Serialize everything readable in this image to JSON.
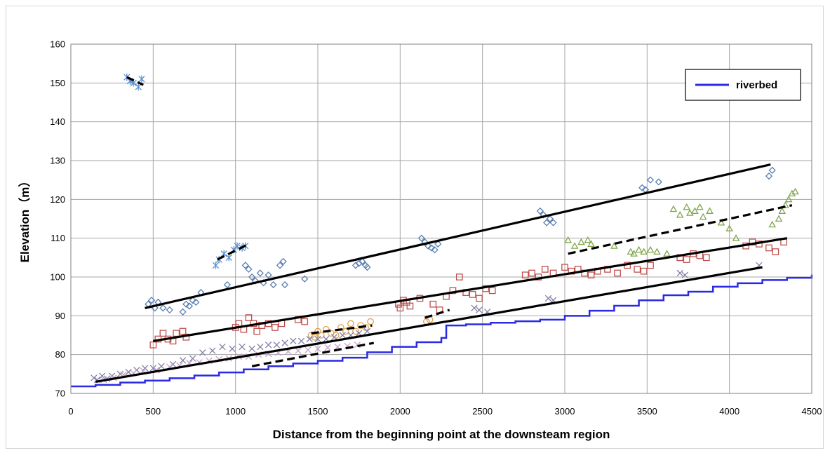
{
  "chart_data": {
    "type": "scatter",
    "title": "",
    "xlabel": "Distance from the beginning point at the downsteam region",
    "ylabel": "Elevation（m）",
    "xlim": [
      0,
      4500
    ],
    "ylim": [
      70,
      160
    ],
    "x_ticks": [
      0,
      500,
      1000,
      1500,
      2000,
      2500,
      3000,
      3500,
      4000,
      4500
    ],
    "y_ticks": [
      70,
      80,
      90,
      100,
      110,
      120,
      130,
      140,
      150,
      160
    ],
    "grid": true,
    "legend": {
      "position": "top-right",
      "entries": [
        {
          "label": "riverbed",
          "color": "#2a2ae6"
        }
      ]
    },
    "riverbed": {
      "name": "riverbed",
      "color": "#2a2ae6",
      "x": [
        0,
        150,
        300,
        450,
        600,
        750,
        900,
        1050,
        1200,
        1350,
        1500,
        1650,
        1800,
        1950,
        2100,
        2250,
        2280,
        2400,
        2550,
        2700,
        2850,
        3000,
        3150,
        3300,
        3450,
        3600,
        3750,
        3900,
        4050,
        4200,
        4350,
        4500
      ],
      "y": [
        71.8,
        72.2,
        72.8,
        73.3,
        73.9,
        74.6,
        75.4,
        76.2,
        77.0,
        77.7,
        78.4,
        79.2,
        80.6,
        82.0,
        83.2,
        84.3,
        87.5,
        87.8,
        88.2,
        88.6,
        89.0,
        90.0,
        91.3,
        92.6,
        94.0,
        95.3,
        96.2,
        97.5,
        98.4,
        99.2,
        99.8,
        100.6
      ]
    },
    "point_series": [
      {
        "marker": "diamond",
        "color": "#5b7fb0",
        "x": [
          470,
          490,
          510,
          530,
          560,
          600,
          680,
          700,
          720,
          740,
          760,
          790,
          950,
          1060,
          1080,
          1100,
          1120,
          1150,
          1170,
          1200,
          1230,
          1270,
          1290,
          1300,
          1420,
          1730,
          1750,
          1770,
          1790,
          1800,
          2130,
          2150,
          2170,
          2190,
          2210,
          2230,
          2850,
          2870,
          2890,
          2910,
          2930,
          3470,
          3490,
          3520,
          3570,
          4240,
          4260
        ],
        "y": [
          93,
          94,
          92,
          93.5,
          92,
          91.5,
          91,
          93,
          92.5,
          94,
          93.5,
          96,
          98,
          103,
          102,
          100,
          99,
          101,
          98.5,
          100.5,
          98,
          103,
          104,
          98,
          99.5,
          103,
          103.5,
          104,
          103,
          102.5,
          110,
          109,
          108,
          107.5,
          107,
          108.5,
          117,
          116,
          114,
          115,
          114,
          123,
          122.5,
          125,
          124.5,
          126,
          127.5
        ]
      },
      {
        "marker": "star",
        "color": "#5b8fd0",
        "x": [
          340,
          360,
          380,
          410,
          430,
          880,
          900,
          930,
          960,
          990,
          1010,
          1040,
          1060
        ],
        "y": [
          151.5,
          150.5,
          150,
          149,
          151,
          103,
          104.5,
          106,
          105,
          107,
          108,
          107.5,
          108
        ]
      },
      {
        "marker": "square",
        "color": "#c0504d",
        "x": [
          500,
          530,
          560,
          590,
          620,
          640,
          680,
          700,
          1000,
          1020,
          1050,
          1080,
          1110,
          1130,
          1160,
          1200,
          1240,
          1280,
          1380,
          1420,
          1990,
          2000,
          2020,
          2040,
          2060,
          2120,
          2200,
          2240,
          2280,
          2320,
          2360,
          2400,
          2440,
          2480,
          2520,
          2560,
          2760,
          2800,
          2840,
          2880,
          2930,
          3000,
          3040,
          3080,
          3120,
          3160,
          3200,
          3260,
          3320,
          3380,
          3440,
          3480,
          3520,
          3700,
          3740,
          3780,
          3820,
          3860,
          4100,
          4140,
          4180,
          4240,
          4280,
          4330
        ],
        "y": [
          82.5,
          84,
          85.5,
          84,
          83.5,
          85.5,
          86,
          84.5,
          87,
          88,
          86.5,
          89.5,
          88,
          86,
          87.5,
          88,
          87,
          88,
          89,
          88.5,
          93,
          92,
          94,
          93.5,
          92.5,
          94.5,
          93,
          91.5,
          95,
          96.5,
          100,
          96,
          95.5,
          94.5,
          97,
          96.5,
          100.5,
          101,
          100,
          102,
          101,
          102.5,
          101.5,
          102,
          101,
          100.5,
          101.5,
          102,
          101,
          103,
          102,
          101.5,
          103,
          105,
          104.5,
          106,
          105.5,
          105,
          108,
          109,
          108.5,
          107.5,
          106.5,
          109
        ]
      },
      {
        "marker": "circle",
        "color": "#e0a050",
        "x": [
          1460,
          1480,
          1500,
          1520,
          1550,
          1580,
          1610,
          1640,
          1670,
          1700,
          1730,
          1760,
          1790,
          1820,
          2160,
          2180
        ],
        "y": [
          85,
          84.5,
          86,
          85,
          86.5,
          85.5,
          85,
          87,
          86,
          88,
          86,
          87.5,
          87,
          88.5,
          88.5,
          89
        ]
      },
      {
        "marker": "x",
        "color": "#8080a8",
        "x": [
          140,
          160,
          190,
          220,
          250,
          300,
          350,
          400,
          450,
          500,
          550,
          620,
          680,
          740,
          800,
          860,
          920,
          980,
          1040,
          1100,
          1150,
          1200,
          1250,
          1300,
          1350,
          1400,
          1450,
          1500,
          1550,
          1600,
          1650,
          1700,
          1750,
          1800,
          2450,
          2480,
          2530,
          2900,
          2930,
          3700,
          3730,
          4180
        ],
        "y": [
          74,
          73.5,
          74.5,
          73.8,
          74.5,
          75,
          75.5,
          76,
          76.5,
          76.5,
          77,
          77.5,
          78.5,
          79,
          80.5,
          81,
          82,
          81.5,
          82,
          81.5,
          82,
          82.5,
          82.5,
          83,
          83.5,
          83.5,
          84,
          84,
          84,
          84.5,
          85,
          85,
          85.5,
          86,
          92,
          91.5,
          91,
          94.5,
          94,
          101,
          100.5,
          103
        ]
      },
      {
        "marker": "x",
        "color": "#c8a0c8",
        "x": [
          200,
          260,
          320,
          380,
          440,
          520,
          600,
          660,
          720,
          780,
          840,
          900,
          960,
          1020,
          1080,
          1140,
          1200,
          1260,
          1320,
          1380,
          1440,
          1500,
          1560,
          1620,
          1680,
          1740
        ],
        "y": [
          73.5,
          74,
          74.8,
          75.2,
          75.8,
          76,
          76.8,
          77.2,
          77.8,
          78,
          78.4,
          78.8,
          79,
          79.5,
          79.5,
          80,
          80.2,
          80.5,
          80.8,
          81,
          81.2,
          81.5,
          81.8,
          82,
          82.2,
          82.5
        ]
      },
      {
        "marker": "triangle",
        "color": "#7fa64c",
        "x": [
          3020,
          3060,
          3100,
          3140,
          3160,
          3300,
          3400,
          3420,
          3450,
          3480,
          3520,
          3560,
          3620,
          3660,
          3700,
          3740,
          3760,
          3790,
          3820,
          3840,
          3880,
          3950,
          4000,
          4040,
          4260,
          4300,
          4320,
          4340,
          4360,
          4380,
          4400
        ],
        "y": [
          109.5,
          108,
          109,
          109.5,
          108.5,
          108,
          106.5,
          106,
          107,
          106.5,
          107,
          106.5,
          106,
          117.5,
          116,
          118,
          116.5,
          117,
          118,
          115.5,
          117,
          114,
          112.5,
          110,
          113.5,
          115,
          117,
          118.5,
          120,
          121.5,
          122
        ]
      }
    ],
    "trend_lines": [
      {
        "style": "solid",
        "x": [
          450,
          4250
        ],
        "y": [
          92,
          129
        ]
      },
      {
        "style": "solid",
        "x": [
          500,
          4350
        ],
        "y": [
          83.5,
          110
        ]
      },
      {
        "style": "solid",
        "x": [
          150,
          4200
        ],
        "y": [
          73,
          102.5
        ]
      },
      {
        "style": "dashed",
        "x": [
          3020,
          4380
        ],
        "y": [
          106,
          118.5
        ]
      },
      {
        "style": "dashed",
        "x": [
          1460,
          1830
        ],
        "y": [
          85.5,
          87.5
        ]
      },
      {
        "style": "dashed",
        "x": [
          1100,
          1840
        ],
        "y": [
          77,
          83
        ]
      },
      {
        "style": "dashed",
        "x": [
          2150,
          2300
        ],
        "y": [
          89.5,
          91.5
        ]
      },
      {
        "style": "dashed",
        "x": [
          890,
          1080
        ],
        "y": [
          104.5,
          108.5
        ]
      },
      {
        "style": "dashed",
        "x": [
          340,
          440
        ],
        "y": [
          151.5,
          149.5
        ]
      }
    ]
  }
}
